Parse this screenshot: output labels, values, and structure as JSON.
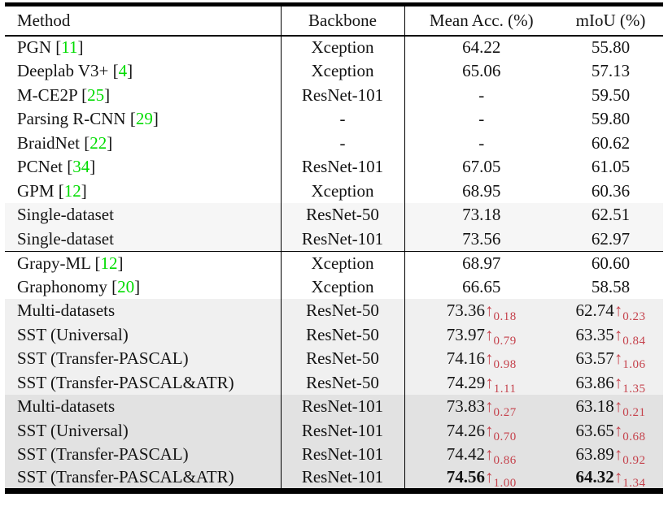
{
  "table": {
    "columns": [
      "Method",
      "Backbone",
      "Mean Acc. (%)",
      "mIoU (%)"
    ],
    "colors": {
      "citation_green": "#00dc00",
      "gain_red": "#c5424c",
      "bg_single_dataset": "#f6f6f6",
      "bg_multi_resnet50": "#f0f0f0",
      "bg_multi_resnet101": "#e2e2e2"
    },
    "rows": [
      {
        "method": "PGN",
        "cite": "11",
        "backbone": "Xception",
        "mean_acc": {
          "value": "64.22"
        },
        "miou": {
          "value": "55.80"
        },
        "bg": "white",
        "rule_below": false
      },
      {
        "method": "Deeplab V3+",
        "cite": "4",
        "backbone": "Xception",
        "mean_acc": {
          "value": "65.06"
        },
        "miou": {
          "value": "57.13"
        },
        "bg": "white",
        "rule_below": false
      },
      {
        "method": "M-CE2P",
        "cite": "25",
        "backbone": "ResNet-101",
        "mean_acc": {
          "value": "-"
        },
        "miou": {
          "value": "59.50"
        },
        "bg": "white",
        "rule_below": false
      },
      {
        "method": "Parsing R-CNN",
        "cite": "29",
        "backbone": "-",
        "mean_acc": {
          "value": "-"
        },
        "miou": {
          "value": "59.80"
        },
        "bg": "white",
        "rule_below": false
      },
      {
        "method": "BraidNet",
        "cite": "22",
        "backbone": "-",
        "mean_acc": {
          "value": "-"
        },
        "miou": {
          "value": "60.62"
        },
        "bg": "white",
        "rule_below": false
      },
      {
        "method": "PCNet",
        "cite": "34",
        "backbone": "ResNet-101",
        "mean_acc": {
          "value": "67.05"
        },
        "miou": {
          "value": "61.05"
        },
        "bg": "white",
        "rule_below": false
      },
      {
        "method": "GPM",
        "cite": "12",
        "backbone": "Xception",
        "mean_acc": {
          "value": "68.95"
        },
        "miou": {
          "value": "60.36"
        },
        "bg": "white",
        "rule_below": false
      },
      {
        "method": "Single-dataset",
        "cite": null,
        "backbone": "ResNet-50",
        "mean_acc": {
          "value": "73.18"
        },
        "miou": {
          "value": "62.51"
        },
        "bg": "light1",
        "rule_below": false
      },
      {
        "method": "Single-dataset",
        "cite": null,
        "backbone": "ResNet-101",
        "mean_acc": {
          "value": "73.56"
        },
        "miou": {
          "value": "62.97"
        },
        "bg": "light1",
        "rule_below": true
      },
      {
        "method": "Grapy-ML",
        "cite": "12",
        "backbone": "Xception",
        "mean_acc": {
          "value": "68.97"
        },
        "miou": {
          "value": "60.60"
        },
        "bg": "white",
        "rule_below": false
      },
      {
        "method": "Graphonomy",
        "cite": "20",
        "backbone": "Xception",
        "mean_acc": {
          "value": "66.65"
        },
        "miou": {
          "value": "58.58"
        },
        "bg": "white",
        "rule_below": false
      },
      {
        "method": "Multi-datasets",
        "cite": null,
        "backbone": "ResNet-50",
        "mean_acc": {
          "value": "73.36",
          "gain": "0.18"
        },
        "miou": {
          "value": "62.74",
          "gain": "0.23"
        },
        "bg": "light2",
        "rule_below": false
      },
      {
        "method": "SST (Universal)",
        "cite": null,
        "backbone": "ResNet-50",
        "mean_acc": {
          "value": "73.97",
          "gain": "0.79"
        },
        "miou": {
          "value": "63.35",
          "gain": "0.84"
        },
        "bg": "light2",
        "rule_below": false
      },
      {
        "method": "SST (Transfer-PASCAL)",
        "cite": null,
        "backbone": "ResNet-50",
        "mean_acc": {
          "value": "74.16",
          "gain": "0.98"
        },
        "miou": {
          "value": "63.57",
          "gain": "1.06"
        },
        "bg": "light2",
        "rule_below": false
      },
      {
        "method": "SST (Transfer-PASCAL&ATR)",
        "cite": null,
        "backbone": "ResNet-50",
        "mean_acc": {
          "value": "74.29",
          "gain": "1.11"
        },
        "miou": {
          "value": "63.86",
          "gain": "1.35"
        },
        "bg": "light2",
        "rule_below": false
      },
      {
        "method": "Multi-datasets",
        "cite": null,
        "backbone": "ResNet-101",
        "mean_acc": {
          "value": "73.83",
          "gain": "0.27"
        },
        "miou": {
          "value": "63.18",
          "gain": "0.21"
        },
        "bg": "dark",
        "rule_below": false
      },
      {
        "method": "SST (Universal)",
        "cite": null,
        "backbone": "ResNet-101",
        "mean_acc": {
          "value": "74.26",
          "gain": "0.70"
        },
        "miou": {
          "value": "63.65",
          "gain": "0.68"
        },
        "bg": "dark",
        "rule_below": false
      },
      {
        "method": "SST (Transfer-PASCAL)",
        "cite": null,
        "backbone": "ResNet-101",
        "mean_acc": {
          "value": "74.42",
          "gain": "0.86"
        },
        "miou": {
          "value": "63.89",
          "gain": "0.92"
        },
        "bg": "dark",
        "rule_below": false
      },
      {
        "method": "SST (Transfer-PASCAL&ATR)",
        "cite": null,
        "backbone": "ResNet-101",
        "mean_acc": {
          "value": "74.56",
          "gain": "1.00",
          "bold": true
        },
        "miou": {
          "value": "64.32",
          "gain": "1.34",
          "bold": true
        },
        "bg": "dark",
        "rule_below": false
      }
    ],
    "glyphs": {
      "up_arrow": "↑",
      "open_bracket": "[",
      "close_bracket": "]"
    }
  }
}
